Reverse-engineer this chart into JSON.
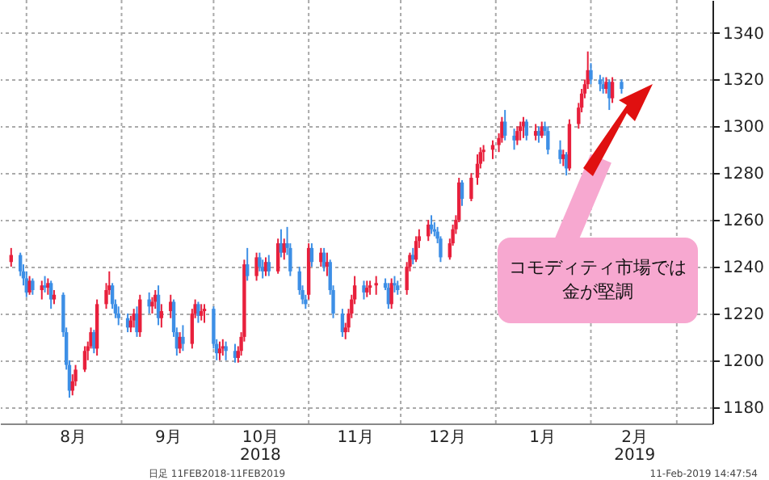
{
  "chart_data": {
    "type": "candlestick",
    "x": [
      "2018-07-27",
      "2018-07-30",
      "2018-07-31",
      "2018-08-01",
      "2018-08-02",
      "2018-08-03",
      "2018-08-06",
      "2018-08-07",
      "2018-08-08",
      "2018-08-09",
      "2018-08-10",
      "2018-08-13",
      "2018-08-14",
      "2018-08-15",
      "2018-08-16",
      "2018-08-17",
      "2018-08-20",
      "2018-08-21",
      "2018-08-22",
      "2018-08-23",
      "2018-08-24",
      "2018-08-27",
      "2018-08-28",
      "2018-08-29",
      "2018-08-30",
      "2018-08-31",
      "2018-09-03",
      "2018-09-04",
      "2018-09-05",
      "2018-09-06",
      "2018-09-07",
      "2018-09-10",
      "2018-09-11",
      "2018-09-12",
      "2018-09-13",
      "2018-09-14",
      "2018-09-17",
      "2018-09-18",
      "2018-09-19",
      "2018-09-20",
      "2018-09-21",
      "2018-09-24",
      "2018-09-25",
      "2018-09-26",
      "2018-09-27",
      "2018-09-28",
      "2018-10-01",
      "2018-10-02",
      "2018-10-03",
      "2018-10-04",
      "2018-10-05",
      "2018-10-08",
      "2018-10-09",
      "2018-10-10",
      "2018-10-11",
      "2018-10-12",
      "2018-10-15",
      "2018-10-16",
      "2018-10-17",
      "2018-10-18",
      "2018-10-19",
      "2018-10-22",
      "2018-10-23",
      "2018-10-24",
      "2018-10-25",
      "2018-10-26",
      "2018-10-29",
      "2018-10-30",
      "2018-10-31",
      "2018-11-01",
      "2018-11-02",
      "2018-11-05",
      "2018-11-06",
      "2018-11-07",
      "2018-11-08",
      "2018-11-09",
      "2018-11-12",
      "2018-11-13",
      "2018-11-14",
      "2018-11-15",
      "2018-11-16",
      "2018-11-19",
      "2018-11-20",
      "2018-11-21",
      "2018-11-23",
      "2018-11-26",
      "2018-11-27",
      "2018-11-28",
      "2018-11-29",
      "2018-11-30",
      "2018-12-03",
      "2018-12-04",
      "2018-12-05",
      "2018-12-06",
      "2018-12-07",
      "2018-12-10",
      "2018-12-11",
      "2018-12-12",
      "2018-12-13",
      "2018-12-14",
      "2018-12-17",
      "2018-12-18",
      "2018-12-19",
      "2018-12-20",
      "2018-12-21",
      "2018-12-24",
      "2018-12-26",
      "2018-12-27",
      "2018-12-28",
      "2018-12-31",
      "2019-01-02",
      "2019-01-03",
      "2019-01-04",
      "2019-01-07",
      "2019-01-08",
      "2019-01-09",
      "2019-01-10",
      "2019-01-11",
      "2019-01-14",
      "2019-01-15",
      "2019-01-16",
      "2019-01-17",
      "2019-01-18",
      "2019-01-22",
      "2019-01-23",
      "2019-01-24",
      "2019-01-25",
      "2019-01-28",
      "2019-01-29",
      "2019-01-30",
      "2019-01-31",
      "2019-02-01",
      "2019-02-04",
      "2019-02-05",
      "2019-02-06",
      "2019-02-07",
      "2019-02-08",
      "2019-02-11"
    ],
    "ohlc": [
      [
        1242,
        1248,
        1240,
        1245
      ],
      [
        1245,
        1246,
        1236,
        1238
      ],
      [
        1238,
        1241,
        1232,
        1235
      ],
      [
        1235,
        1238,
        1227,
        1229
      ],
      [
        1229,
        1236,
        1228,
        1234
      ],
      [
        1234,
        1235,
        1228,
        1230
      ],
      [
        1230,
        1234,
        1226,
        1232
      ],
      [
        1232,
        1236,
        1229,
        1231
      ],
      [
        1231,
        1235,
        1228,
        1233
      ],
      [
        1233,
        1234,
        1222,
        1226
      ],
      [
        1226,
        1230,
        1224,
        1228
      ],
      [
        1228,
        1229,
        1210,
        1212
      ],
      [
        1212,
        1214,
        1196,
        1198
      ],
      [
        1198,
        1200,
        1184,
        1187
      ],
      [
        1187,
        1194,
        1185,
        1191
      ],
      [
        1191,
        1198,
        1189,
        1196
      ],
      [
        1196,
        1206,
        1195,
        1204
      ],
      [
        1204,
        1208,
        1200,
        1206
      ],
      [
        1206,
        1214,
        1205,
        1212
      ],
      [
        1212,
        1213,
        1203,
        1205
      ],
      [
        1205,
        1226,
        1202,
        1224
      ],
      [
        1224,
        1233,
        1222,
        1230
      ],
      [
        1230,
        1238,
        1228,
        1232
      ],
      [
        1232,
        1233,
        1222,
        1224
      ],
      [
        1224,
        1226,
        1218,
        1220
      ],
      [
        1220,
        1223,
        1215,
        1218
      ],
      [
        1218,
        1220,
        1212,
        1214
      ],
      [
        1214,
        1219,
        1212,
        1217
      ],
      [
        1217,
        1222,
        1214,
        1220
      ],
      [
        1220,
        1223,
        1210,
        1212
      ],
      [
        1212,
        1228,
        1210,
        1226
      ],
      [
        1226,
        1229,
        1220,
        1223
      ],
      [
        1223,
        1227,
        1220,
        1225
      ],
      [
        1225,
        1230,
        1222,
        1228
      ],
      [
        1228,
        1232,
        1215,
        1218
      ],
      [
        1218,
        1224,
        1214,
        1221
      ],
      [
        1221,
        1228,
        1218,
        1225
      ],
      [
        1225,
        1226,
        1210,
        1212
      ],
      [
        1212,
        1214,
        1202,
        1205
      ],
      [
        1205,
        1212,
        1203,
        1210
      ],
      [
        1210,
        1215,
        1204,
        1207
      ],
      [
        1207,
        1222,
        1205,
        1220
      ],
      [
        1220,
        1226,
        1218,
        1224
      ],
      [
        1224,
        1225,
        1216,
        1219
      ],
      [
        1219,
        1224,
        1217,
        1221
      ],
      [
        1221,
        1224,
        1216,
        1222
      ],
      [
        1222,
        1223,
        1205,
        1207
      ],
      [
        1207,
        1209,
        1200,
        1203
      ],
      [
        1203,
        1208,
        1200,
        1205
      ],
      [
        1205,
        1209,
        1202,
        1206
      ],
      [
        1206,
        1208,
        1200,
        1204
      ],
      [
        1204,
        1207,
        1199,
        1201
      ],
      [
        1201,
        1206,
        1199,
        1204
      ],
      [
        1204,
        1212,
        1202,
        1210
      ],
      [
        1210,
        1243,
        1208,
        1241
      ],
      [
        1241,
        1248,
        1234,
        1236
      ],
      [
        1236,
        1246,
        1234,
        1244
      ],
      [
        1244,
        1246,
        1238,
        1240
      ],
      [
        1240,
        1243,
        1235,
        1238
      ],
      [
        1238,
        1244,
        1236,
        1242
      ],
      [
        1242,
        1245,
        1236,
        1238
      ],
      [
        1238,
        1252,
        1237,
        1250
      ],
      [
        1250,
        1256,
        1244,
        1246
      ],
      [
        1246,
        1252,
        1243,
        1250
      ],
      [
        1250,
        1257,
        1245,
        1248
      ],
      [
        1248,
        1250,
        1236,
        1238
      ],
      [
        1238,
        1240,
        1228,
        1230
      ],
      [
        1230,
        1232,
        1224,
        1226
      ],
      [
        1226,
        1228,
        1222,
        1224
      ],
      [
        1228,
        1250,
        1226,
        1248
      ],
      [
        1248,
        1250,
        1240,
        1242
      ],
      [
        1242,
        1248,
        1240,
        1246
      ],
      [
        1246,
        1248,
        1238,
        1240
      ],
      [
        1240,
        1246,
        1236,
        1242
      ],
      [
        1242,
        1243,
        1228,
        1230
      ],
      [
        1230,
        1232,
        1218,
        1220
      ],
      [
        1220,
        1222,
        1210,
        1212
      ],
      [
        1212,
        1216,
        1209,
        1214
      ],
      [
        1214,
        1222,
        1212,
        1220
      ],
      [
        1220,
        1228,
        1218,
        1226
      ],
      [
        1226,
        1236,
        1224,
        1232
      ],
      [
        1232,
        1234,
        1226,
        1229
      ],
      [
        1229,
        1234,
        1227,
        1231
      ],
      [
        1231,
        1234,
        1228,
        1232
      ],
      [
        1232,
        1236,
        1228,
        1233
      ],
      [
        1233,
        1235,
        1230,
        1231
      ],
      [
        1231,
        1233,
        1222,
        1224
      ],
      [
        1224,
        1235,
        1222,
        1233
      ],
      [
        1233,
        1236,
        1229,
        1232
      ],
      [
        1232,
        1234,
        1228,
        1230
      ],
      [
        1230,
        1242,
        1228,
        1240
      ],
      [
        1240,
        1246,
        1238,
        1245
      ],
      [
        1245,
        1248,
        1241,
        1243
      ],
      [
        1243,
        1253,
        1242,
        1251
      ],
      [
        1251,
        1256,
        1248,
        1253
      ],
      [
        1253,
        1260,
        1251,
        1258
      ],
      [
        1258,
        1262,
        1254,
        1256
      ],
      [
        1256,
        1259,
        1253,
        1255
      ],
      [
        1255,
        1257,
        1250,
        1252
      ],
      [
        1252,
        1253,
        1242,
        1244
      ],
      [
        1244,
        1252,
        1243,
        1250
      ],
      [
        1250,
        1258,
        1249,
        1256
      ],
      [
        1256,
        1262,
        1254,
        1260
      ],
      [
        1260,
        1278,
        1259,
        1276
      ],
      [
        1276,
        1277,
        1266,
        1269
      ],
      [
        1269,
        1280,
        1268,
        1278
      ],
      [
        1278,
        1288,
        1275,
        1284
      ],
      [
        1284,
        1291,
        1282,
        1289
      ],
      [
        1289,
        1292,
        1285,
        1290
      ],
      [
        1290,
        1294,
        1286,
        1292
      ],
      [
        1292,
        1297,
        1289,
        1295
      ],
      [
        1295,
        1304,
        1293,
        1302
      ],
      [
        1302,
        1307,
        1294,
        1296
      ],
      [
        1296,
        1299,
        1290,
        1294
      ],
      [
        1294,
        1300,
        1292,
        1298
      ],
      [
        1298,
        1302,
        1294,
        1300
      ],
      [
        1300,
        1304,
        1295,
        1302
      ],
      [
        1302,
        1303,
        1294,
        1296
      ],
      [
        1296,
        1301,
        1294,
        1298
      ],
      [
        1298,
        1300,
        1293,
        1296
      ],
      [
        1296,
        1302,
        1295,
        1300
      ],
      [
        1300,
        1302,
        1296,
        1298
      ],
      [
        1298,
        1300,
        1288,
        1290
      ],
      [
        1290,
        1294,
        1284,
        1286
      ],
      [
        1286,
        1290,
        1283,
        1288
      ],
      [
        1288,
        1289,
        1279,
        1282
      ],
      [
        1282,
        1303,
        1281,
        1301
      ],
      [
        1301,
        1310,
        1299,
        1308
      ],
      [
        1308,
        1316,
        1306,
        1314
      ],
      [
        1314,
        1320,
        1312,
        1318
      ],
      [
        1318,
        1332,
        1316,
        1324
      ],
      [
        1324,
        1327,
        1318,
        1320
      ],
      [
        1320,
        1322,
        1315,
        1318
      ],
      [
        1318,
        1321,
        1314,
        1316
      ],
      [
        1316,
        1321,
        1314,
        1319
      ],
      [
        1319,
        1320,
        1307,
        1312
      ],
      [
        1312,
        1321,
        1310,
        1319
      ],
      [
        1319,
        1320,
        1314,
        1316
      ]
    ],
    "colors": [
      "#e8203c",
      "#3d8fe6",
      "#3d8fe6",
      "#3d8fe6",
      "#e8203c",
      "#3d8fe6",
      "#e8203c",
      "#3d8fe6",
      "#e8203c",
      "#3d8fe6",
      "#e8203c",
      "#3d8fe6",
      "#3d8fe6",
      "#3d8fe6",
      "#e8203c",
      "#e8203c",
      "#e8203c",
      "#e8203c",
      "#e8203c",
      "#3d8fe6",
      "#e8203c",
      "#e8203c",
      "#e8203c",
      "#3d8fe6",
      "#3d8fe6",
      "#3d8fe6",
      "#3d8fe6",
      "#e8203c",
      "#e8203c",
      "#3d8fe6",
      "#e8203c",
      "#3d8fe6",
      "#e8203c",
      "#e8203c",
      "#3d8fe6",
      "#e8203c",
      "#e8203c",
      "#3d8fe6",
      "#3d8fe6",
      "#e8203c",
      "#3d8fe6",
      "#e8203c",
      "#e8203c",
      "#3d8fe6",
      "#e8203c",
      "#e8203c",
      "#3d8fe6",
      "#3d8fe6",
      "#e8203c",
      "#e8203c",
      "#3d8fe6",
      "#3d8fe6",
      "#e8203c",
      "#e8203c",
      "#e8203c",
      "#3d8fe6",
      "#e8203c",
      "#3d8fe6",
      "#3d8fe6",
      "#e8203c",
      "#3d8fe6",
      "#e8203c",
      "#3d8fe6",
      "#e8203c",
      "#3d8fe6",
      "#3d8fe6",
      "#3d8fe6",
      "#3d8fe6",
      "#3d8fe6",
      "#e8203c",
      "#3d8fe6",
      "#e8203c",
      "#3d8fe6",
      "#e8203c",
      "#3d8fe6",
      "#3d8fe6",
      "#3d8fe6",
      "#e8203c",
      "#e8203c",
      "#e8203c",
      "#e8203c",
      "#3d8fe6",
      "#e8203c",
      "#e8203c",
      "#e8203c",
      "#3d8fe6",
      "#3d8fe6",
      "#e8203c",
      "#3d8fe6",
      "#3d8fe6",
      "#e8203c",
      "#e8203c",
      "#3d8fe6",
      "#e8203c",
      "#e8203c",
      "#e8203c",
      "#3d8fe6",
      "#3d8fe6",
      "#3d8fe6",
      "#3d8fe6",
      "#e8203c",
      "#e8203c",
      "#e8203c",
      "#e8203c",
      "#3d8fe6",
      "#e8203c",
      "#e8203c",
      "#e8203c",
      "#e8203c",
      "#e8203c",
      "#e8203c",
      "#e8203c",
      "#3d8fe6",
      "#3d8fe6",
      "#e8203c",
      "#e8203c",
      "#e8203c",
      "#3d8fe6",
      "#e8203c",
      "#3d8fe6",
      "#e8203c",
      "#3d8fe6",
      "#3d8fe6",
      "#3d8fe6",
      "#e8203c",
      "#3d8fe6",
      "#e8203c",
      "#e8203c",
      "#e8203c",
      "#e8203c",
      "#e8203c",
      "#3d8fe6",
      "#3d8fe6",
      "#3d8fe6",
      "#e8203c",
      "#3d8fe6",
      "#e8203c",
      "#3d8fe6"
    ],
    "xlim": [
      "2018-07-26",
      "2019-03-10"
    ],
    "xticks": [
      {
        "value": "2018-08-01",
        "label": null
      },
      {
        "value": "2018-08-16",
        "label": "8月"
      },
      {
        "value": "2018-09-01",
        "label": null
      },
      {
        "value": "2018-09-16",
        "label": "9月"
      },
      {
        "value": "2018-10-01",
        "label": null
      },
      {
        "value": "2018-10-16",
        "label": "10月\n2018"
      },
      {
        "value": "2018-11-01",
        "label": null
      },
      {
        "value": "2018-11-16",
        "label": "11月"
      },
      {
        "value": "2018-12-01",
        "label": null
      },
      {
        "value": "2018-12-16",
        "label": "12月"
      },
      {
        "value": "2019-01-01",
        "label": null
      },
      {
        "value": "2019-01-16",
        "label": "1月"
      },
      {
        "value": "2019-02-01",
        "label": null
      },
      {
        "value": "2019-02-15",
        "label": "2月\n2019"
      },
      {
        "value": "2019-03-01",
        "label": null
      }
    ],
    "ylim": [
      1173,
      1354
    ],
    "yticks": [
      1180,
      1200,
      1220,
      1240,
      1260,
      1280,
      1300,
      1320,
      1340
    ],
    "grid": true,
    "annotations": [
      "コモディティ市場では金が堅調",
      "日足 11FEB2018-11FEB2019",
      "11-Feb-2019 14:47:54"
    ]
  }
}
